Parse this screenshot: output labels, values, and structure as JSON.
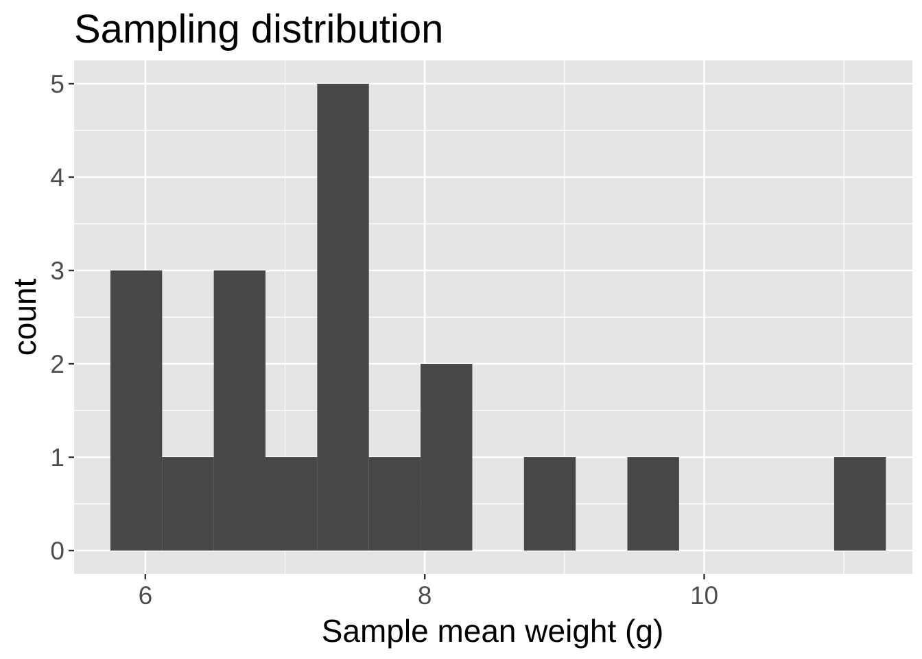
{
  "chart_data": {
    "type": "bar",
    "title": "Sampling distribution",
    "xlabel": "Sample mean weight (g)",
    "ylabel": "count",
    "bins": [
      {
        "x0": 5.75,
        "x1": 6.12,
        "count": 3
      },
      {
        "x0": 6.12,
        "x1": 6.49,
        "count": 1
      },
      {
        "x0": 6.49,
        "x1": 6.86,
        "count": 3
      },
      {
        "x0": 6.86,
        "x1": 7.23,
        "count": 1
      },
      {
        "x0": 7.23,
        "x1": 7.6,
        "count": 5
      },
      {
        "x0": 7.6,
        "x1": 7.97,
        "count": 1
      },
      {
        "x0": 7.97,
        "x1": 8.34,
        "count": 2
      },
      {
        "x0": 8.34,
        "x1": 8.71,
        "count": 0
      },
      {
        "x0": 8.71,
        "x1": 9.08,
        "count": 1
      },
      {
        "x0": 9.08,
        "x1": 9.45,
        "count": 0
      },
      {
        "x0": 9.45,
        "x1": 9.82,
        "count": 1
      },
      {
        "x0": 9.82,
        "x1": 10.19,
        "count": 0
      },
      {
        "x0": 10.19,
        "x1": 10.56,
        "count": 0
      },
      {
        "x0": 10.56,
        "x1": 10.93,
        "count": 0
      },
      {
        "x0": 10.93,
        "x1": 11.3,
        "count": 1
      }
    ],
    "xlim": [
      5.49,
      11.49
    ],
    "ylim": [
      -0.25,
      5.25
    ],
    "x_ticks": [
      6,
      8,
      10
    ],
    "y_ticks": [
      0,
      1,
      2,
      3,
      4,
      5
    ],
    "grid": true,
    "colors": {
      "bar": "#474747",
      "panel": "#e5e5e5",
      "grid": "#ffffff"
    }
  }
}
